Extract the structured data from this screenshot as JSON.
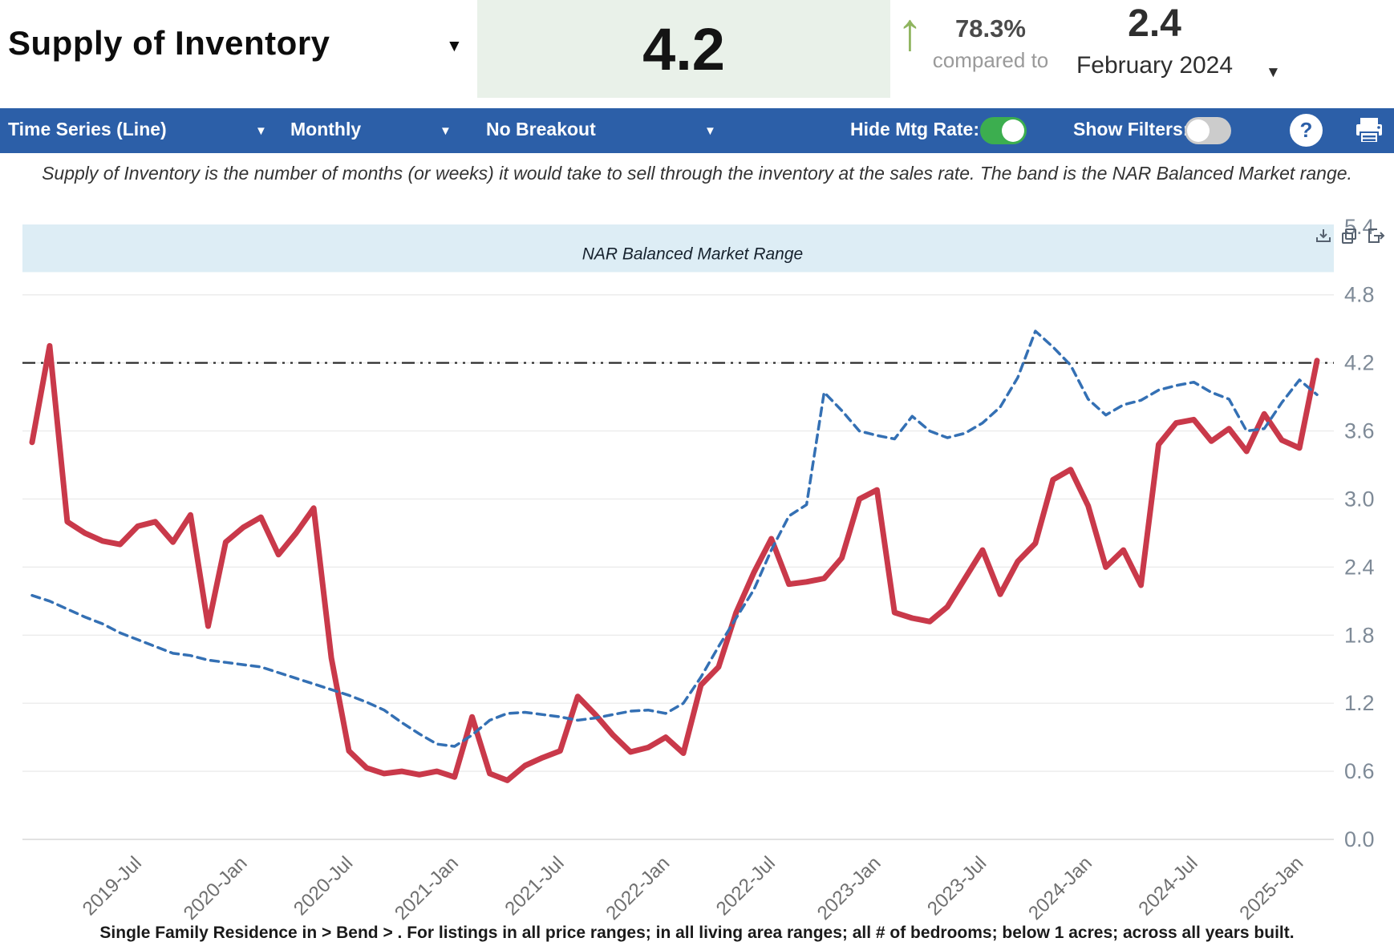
{
  "header": {
    "title": "Supply of Inventory",
    "current_value": "4.2",
    "change_pct": "78.3%",
    "compared_label": "compared to",
    "previous_value": "2.4",
    "compare_period": "February 2024"
  },
  "icons": {
    "caret": "▼",
    "up_arrow": "↑",
    "help": "?"
  },
  "toolbar": {
    "chart_type": "Time Series (Line)",
    "frequency": "Monthly",
    "breakout": "No Breakout",
    "hide_mtg_rate_label": "Hide Mtg Rate:",
    "hide_mtg_rate_on": true,
    "show_filters_label": "Show Filters:",
    "show_filters_on": false
  },
  "description": "Supply of Inventory is the number of months (or weeks) it would take to sell through the inventory at the sales rate. The band is the NAR Balanced Market range.",
  "footer": "Single Family Residence in > Bend > . For listings in all price ranges; in all living area ranges; all # of bedrooms; below 1 acres; across all years built.",
  "colors": {
    "toolbar_blue": "#2c5fa8",
    "value_box_green": "#e9f1e9",
    "arrow_green": "#8fb55f",
    "supply_red": "#c9394a",
    "mtg_blue": "#3470b4",
    "band_blue": "#ddedf5",
    "grid": "#ececec",
    "axis_label": "#7e8a97",
    "x_label": "#6f6f6f",
    "ref_line": "#2b2b2b"
  },
  "chart_data": {
    "type": "line",
    "title": "",
    "ylabel": "",
    "xlabel": "",
    "ylim": [
      0,
      5.42
    ],
    "yticks": [
      0.0,
      0.6,
      1.2,
      1.8,
      2.4,
      3.0,
      3.6,
      4.2,
      4.8,
      5.4
    ],
    "grid": true,
    "legend": "none",
    "band": {
      "label": "NAR Balanced Market Range",
      "from": 5.0,
      "to": 5.42
    },
    "reference_line": {
      "value": 4.2,
      "style": "dash-dot"
    },
    "xtick_labels": [
      "2019-Jul",
      "2020-Jan",
      "2020-Jul",
      "2021-Jan",
      "2021-Jul",
      "2022-Jan",
      "2022-Jul",
      "2023-Jan",
      "2023-Jul",
      "2024-Jan",
      "2024-Jul",
      "2025-Jan"
    ],
    "xtick_first_index": 6,
    "xtick_every": 6,
    "x_months": [
      "2019-01",
      "2019-02",
      "2019-03",
      "2019-04",
      "2019-05",
      "2019-06",
      "2019-07",
      "2019-08",
      "2019-09",
      "2019-10",
      "2019-11",
      "2019-12",
      "2020-01",
      "2020-02",
      "2020-03",
      "2020-04",
      "2020-05",
      "2020-06",
      "2020-07",
      "2020-08",
      "2020-09",
      "2020-10",
      "2020-11",
      "2020-12",
      "2021-01",
      "2021-02",
      "2021-03",
      "2021-04",
      "2021-05",
      "2021-06",
      "2021-07",
      "2021-08",
      "2021-09",
      "2021-10",
      "2021-11",
      "2021-12",
      "2022-01",
      "2022-02",
      "2022-03",
      "2022-04",
      "2022-05",
      "2022-06",
      "2022-07",
      "2022-08",
      "2022-09",
      "2022-10",
      "2022-11",
      "2022-12",
      "2023-01",
      "2023-02",
      "2023-03",
      "2023-04",
      "2023-05",
      "2023-06",
      "2023-07",
      "2023-08",
      "2023-09",
      "2023-10",
      "2023-11",
      "2023-12",
      "2024-01",
      "2024-02",
      "2024-03",
      "2024-04",
      "2024-05",
      "2024-06",
      "2024-07",
      "2024-08",
      "2024-09",
      "2024-10",
      "2024-11",
      "2024-12",
      "2025-01",
      "2025-02"
    ],
    "series": [
      {
        "name": "Supply of Inventory",
        "style": "solid",
        "width": 7,
        "values": [
          3.5,
          4.35,
          2.8,
          2.7,
          2.63,
          2.6,
          2.76,
          2.8,
          2.62,
          2.86,
          1.88,
          2.62,
          2.75,
          2.84,
          2.51,
          2.7,
          2.92,
          1.6,
          0.78,
          0.63,
          0.58,
          0.6,
          0.57,
          0.6,
          0.55,
          1.08,
          0.58,
          0.52,
          0.65,
          0.72,
          0.78,
          1.26,
          1.1,
          0.92,
          0.77,
          0.81,
          0.9,
          0.76,
          1.36,
          1.52,
          2.0,
          2.35,
          2.65,
          2.25,
          2.27,
          2.3,
          2.48,
          3.0,
          3.08,
          2.0,
          1.95,
          1.92,
          2.05,
          2.3,
          2.55,
          2.16,
          2.45,
          2.61,
          3.17,
          3.26,
          2.94,
          2.4,
          2.55,
          2.24,
          3.48,
          3.67,
          3.7,
          3.51,
          3.62,
          3.42,
          3.75,
          3.52,
          3.45,
          4.22
        ]
      },
      {
        "name": "Mtg Rate",
        "style": "dashed",
        "width": 3.5,
        "values": [
          2.15,
          2.1,
          2.03,
          1.96,
          1.9,
          1.82,
          1.76,
          1.7,
          1.64,
          1.62,
          1.58,
          1.56,
          1.54,
          1.52,
          1.47,
          1.42,
          1.37,
          1.32,
          1.27,
          1.21,
          1.14,
          1.03,
          0.93,
          0.84,
          0.82,
          0.92,
          1.05,
          1.11,
          1.12,
          1.1,
          1.08,
          1.05,
          1.07,
          1.1,
          1.13,
          1.14,
          1.11,
          1.2,
          1.43,
          1.7,
          1.95,
          2.2,
          2.55,
          2.85,
          2.95,
          3.94,
          3.78,
          3.6,
          3.56,
          3.53,
          3.73,
          3.6,
          3.54,
          3.58,
          3.67,
          3.81,
          4.07,
          4.48,
          4.34,
          4.18,
          3.88,
          3.74,
          3.83,
          3.87,
          3.96,
          4.0,
          4.03,
          3.94,
          3.88,
          3.6,
          3.62,
          3.85,
          4.05,
          3.92
        ]
      }
    ]
  }
}
